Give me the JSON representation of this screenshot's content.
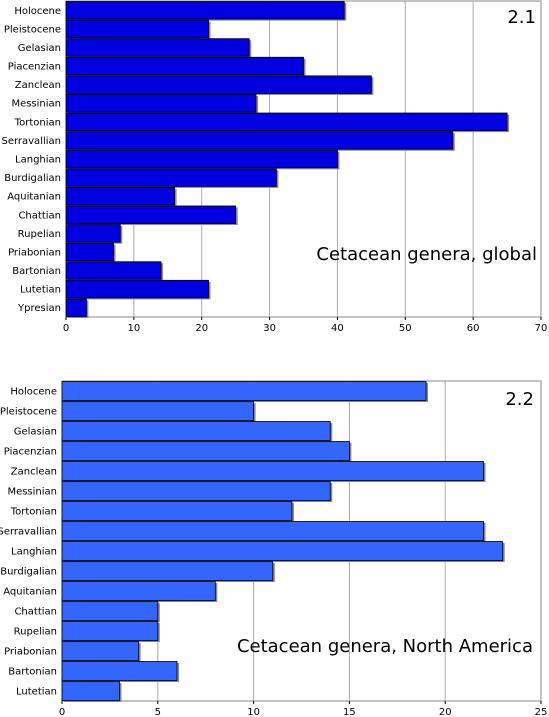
{
  "chart_data": [
    {
      "type": "bar",
      "orientation": "horizontal",
      "panel_label": "2.1",
      "title": "Cetacean genera, global",
      "categories": [
        "Holocene",
        "Pleistocene",
        "Gelasian",
        "Piacenzian",
        "Zanclean",
        "Messinian",
        "Tortonian",
        "Serravallian",
        "Langhian",
        "Burdigalian",
        "Aquitanian",
        "Chattian",
        "Rupelian",
        "Priabonian",
        "Bartonian",
        "Lutetian",
        "Ypresian"
      ],
      "values": [
        41,
        21,
        27,
        35,
        45,
        28,
        65,
        57,
        40,
        31,
        16,
        25,
        8,
        7,
        14,
        21,
        3
      ],
      "xlim": [
        0,
        70
      ],
      "xticks": [
        0,
        10,
        20,
        30,
        40,
        50,
        60,
        70
      ],
      "grid": "vertical",
      "bar_color": "#0000e0"
    },
    {
      "type": "bar",
      "orientation": "horizontal",
      "panel_label": "2.2",
      "title": "Cetacean genera, North America",
      "categories": [
        "Holocene",
        "Pleistocene",
        "Gelasian",
        "Piacenzian",
        "Zanclean",
        "Messinian",
        "Tortonian",
        "Serravallian",
        "Langhian",
        "Burdigalian",
        "Aquitanian",
        "Chattian",
        "Rupelian",
        "Priabonian",
        "Bartonian",
        "Lutetian"
      ],
      "values": [
        19,
        10,
        14,
        15,
        22,
        14,
        12,
        22,
        23,
        11,
        8,
        5,
        5,
        4,
        6,
        3
      ],
      "xlim": [
        0,
        25
      ],
      "xticks": [
        0,
        5,
        10,
        15,
        20,
        25
      ],
      "grid": "vertical",
      "bar_color": "#3366ff"
    }
  ]
}
